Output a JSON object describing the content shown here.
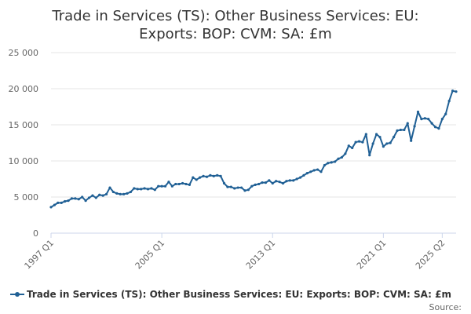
{
  "chart_data": {
    "type": "line",
    "title_lines": [
      "Trade in Services (TS): Other Business Services: EU:",
      "Exports: BOP: CVM: SA: £m"
    ],
    "xlabel": "",
    "ylabel": "",
    "ylim": [
      0,
      25000
    ],
    "y_ticks": [
      0,
      5000,
      10000,
      15000,
      20000,
      25000
    ],
    "y_tick_labels": [
      "0",
      "5 000",
      "10 000",
      "15 000",
      "20 000",
      "25 000"
    ],
    "x_tick_labels": [
      "1997 Q1",
      "2005 Q1",
      "2013 Q1",
      "2021 Q1",
      "2025 Q2"
    ],
    "x_tick_positions": [
      0,
      32,
      64,
      96,
      113
    ],
    "grid": true,
    "legend_position": "bottom",
    "colors": {
      "series": "#206095",
      "grid": "#e6e6e6",
      "axis": "#ccd6eb"
    },
    "source_label": "Source:",
    "series": [
      {
        "name": "Trade in Services (TS): Other Business Services: EU: Exports: BOP: CVM: SA: £m",
        "values": [
          3600,
          3900,
          4200,
          4200,
          4400,
          4500,
          4800,
          4800,
          4700,
          5000,
          4500,
          4900,
          5200,
          4900,
          5300,
          5200,
          5400,
          6300,
          5700,
          5500,
          5400,
          5400,
          5500,
          5700,
          6200,
          6100,
          6100,
          6200,
          6100,
          6200,
          6000,
          6500,
          6500,
          6500,
          7100,
          6500,
          6800,
          6800,
          6900,
          6800,
          6700,
          7700,
          7400,
          7700,
          7900,
          7800,
          8000,
          7900,
          8000,
          7900,
          6900,
          6400,
          6400,
          6200,
          6300,
          6300,
          5900,
          6000,
          6500,
          6700,
          6800,
          7000,
          7000,
          7300,
          6900,
          7200,
          7100,
          6900,
          7200,
          7300,
          7300,
          7500,
          7700,
          8000,
          8300,
          8500,
          8700,
          8800,
          8500,
          9400,
          9700,
          9800,
          9900,
          10300,
          10500,
          11000,
          12100,
          11800,
          12600,
          12700,
          12600,
          13700,
          10800,
          12400,
          13700,
          13300,
          12000,
          12400,
          12500,
          13300,
          14200,
          14300,
          14300,
          15200,
          12800,
          14800,
          16800,
          15800,
          15900,
          15800,
          15200,
          14700,
          14500,
          15800,
          16500,
          18300,
          19700,
          19600
        ]
      }
    ]
  }
}
